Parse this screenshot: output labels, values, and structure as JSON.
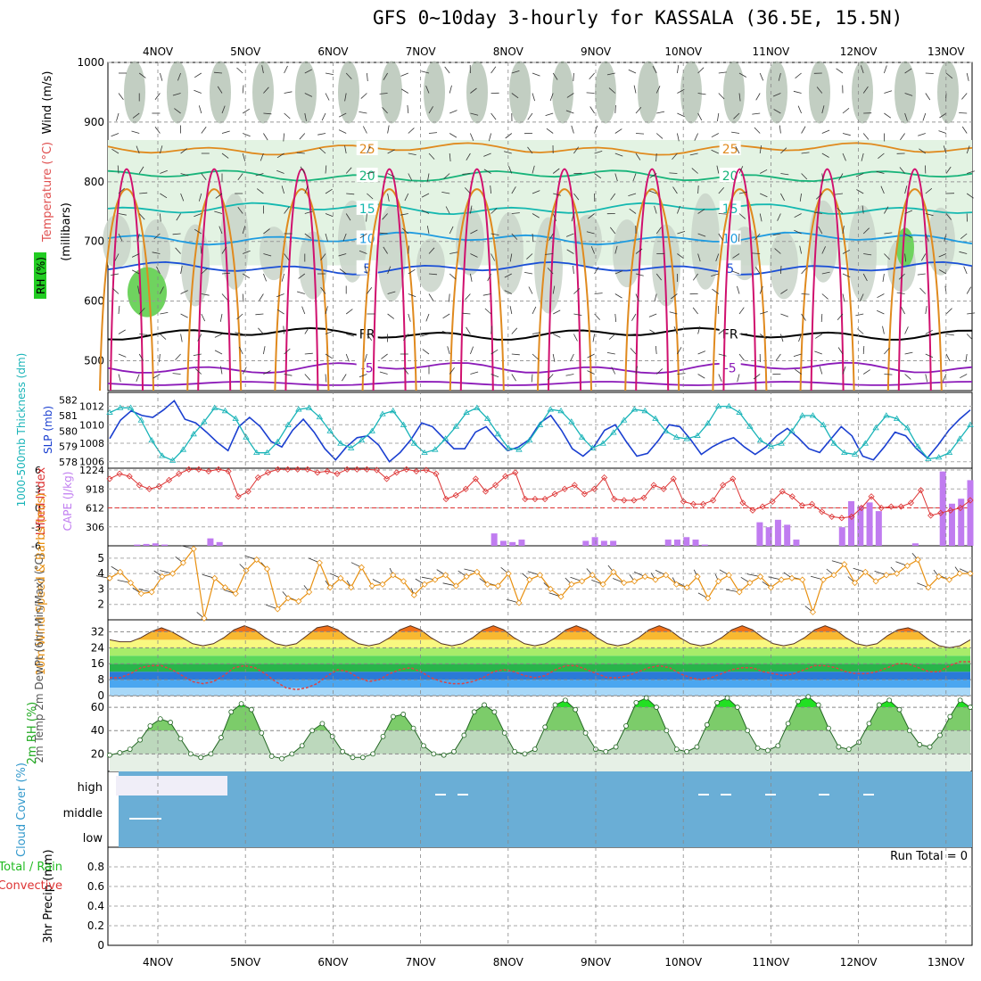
{
  "title": "GFS 0~10day 3-hourly for KASSALA (36.5E, 15.5N)",
  "days": [
    "4NOV",
    "5NOV",
    "6NOV",
    "7NOV",
    "8NOV",
    "9NOV",
    "10NOV",
    "11NOV",
    "12NOV",
    "13NOV"
  ],
  "colors": {
    "purple": "#8b1ab8",
    "black": "#000000",
    "blue5": "#1a4fd6",
    "blue10": "#1e9be0",
    "cyan15": "#14b8b0",
    "green20": "#18b47a",
    "orange25": "#e08a1e",
    "magenta": "#d0106e",
    "rh_light": "#e3f3e3",
    "rh_mid": "#c9d3c9",
    "rh_dark": "#8fa68f",
    "rh_green": "#6fd35f",
    "slp": "#1a3fd0",
    "thick": "#1ab4b8",
    "li": "#dd3333",
    "cape": "#c07cf0",
    "wind": "#e89010",
    "cloud": "#6aaed6",
    "rhfill": "#22dd22",
    "dew": "#dd4444"
  },
  "chart_data": [
    {
      "id": "upper-air",
      "type": "heatmap",
      "ylabel": "(millibars)",
      "title_parts": [
        "RH (%)",
        "Temperature (°C)",
        "Wind (m/s)"
      ],
      "y_ticks": [
        "500",
        "600",
        "700",
        "800",
        "900",
        "1000"
      ],
      "ylim": [
        450,
        1000
      ],
      "isotherms": [
        {
          "label": "-5",
          "level": 488
        },
        {
          "label": "FR",
          "level": 545
        },
        {
          "label": "5",
          "level": 655
        },
        {
          "label": "10",
          "level": 705
        },
        {
          "label": "15",
          "level": 755
        },
        {
          "label": "20",
          "level": 810
        },
        {
          "label": "25",
          "level": 855
        }
      ]
    },
    {
      "id": "slp-thickness",
      "type": "line",
      "ylabel_left": "1000-500mb Thickness (dm)",
      "ylabel_right": "SLP (mb)",
      "thickness_ticks": [
        "582",
        "581",
        "580",
        "579",
        "578"
      ],
      "slp_ticks": [
        "1012",
        "1010",
        "1008",
        "1006"
      ],
      "series": [
        {
          "name": "SLP",
          "values": [
            1008.5,
            1010.5,
            1011.5,
            1011,
            1010.8,
            1011.6,
            1012.6,
            1010.6,
            1010.2,
            1009.2,
            1008.1,
            1007.2,
            1009.8,
            1010.8,
            1009.8,
            1008.2,
            1007.6,
            1009.4,
            1010.6,
            1009.2,
            1007.4,
            1006.2,
            1007.6,
            1008.6,
            1008.8,
            1007.8,
            1006,
            1007,
            1008.4,
            1010.2,
            1009.8,
            1008.6,
            1007.4,
            1007.4,
            1009.2,
            1009.8,
            1008.4,
            1007.2,
            1007.6,
            1008.4,
            1010.2,
            1011,
            1009.4,
            1007.4,
            1006.6,
            1007.6,
            1009.4,
            1010,
            1008.2,
            1006.6,
            1006.9,
            1008.3,
            1010,
            1009.8,
            1008.4,
            1006.8,
            1007.6,
            1008.2,
            1008.6,
            1007.6,
            1006.8,
            1007.6,
            1008.8,
            1009.6,
            1008.6,
            1007.4,
            1007,
            1008.4,
            1009.8,
            1008.8,
            1006.6,
            1006.2,
            1007.6,
            1009.2,
            1008.8,
            1007.4,
            1006.4,
            1007.8,
            1009.4,
            1010.6,
            1011.6
          ]
        },
        {
          "name": "Thickness",
          "values": [
            581.2,
            581.5,
            581.5,
            580.7,
            579.4,
            578.4,
            578.1,
            578.8,
            579.8,
            580.6,
            581.5,
            581.3,
            580.8,
            579.6,
            578.6,
            578.6,
            579.3,
            580.4,
            581.4,
            581.5,
            580.9,
            580,
            579.2,
            578.9,
            579.4,
            580,
            581.1,
            581.3,
            580.4,
            579.2,
            578.6,
            578.8,
            579.5,
            580.3,
            581.2,
            581.5,
            580.8,
            579.8,
            578.9,
            578.8,
            579.4,
            580.4,
            581.4,
            581.3,
            580.6,
            579.6,
            578.9,
            579.2,
            579.9,
            580.7,
            581.4,
            581.3,
            580.8,
            580,
            579.6,
            579.5,
            579.7,
            580.5,
            581.6,
            581.6,
            581.2,
            580.3,
            579.4,
            579,
            579.2,
            580,
            581,
            581,
            580.4,
            579.2,
            578.6,
            578.5,
            579.2,
            580.2,
            581,
            580.8,
            580.2,
            579,
            578.2,
            578.3,
            578.6,
            579.5,
            580.4
          ]
        }
      ]
    },
    {
      "id": "lifted-cape",
      "type": "bar",
      "ylabel_left": "Lifted Index",
      "ylabel_right": "CAPE (J/kg)",
      "li_ticks": [
        "-6",
        "-3",
        "0",
        "3",
        "6"
      ],
      "cape_ticks": [
        "1224",
        "918",
        "612",
        "306"
      ],
      "series": [
        {
          "name": "Lifted Index",
          "values": [
            4.6,
            5.4,
            5,
            3.6,
            3,
            3.4,
            4.4,
            5.4,
            6.1,
            6.1,
            5.8,
            6.1,
            5.8,
            1.8,
            2.6,
            4.8,
            5.6,
            6.1,
            6.1,
            6.1,
            6.1,
            5.6,
            5.8,
            5.4,
            6.1,
            6.1,
            6.1,
            6,
            4.6,
            5.6,
            6.1,
            5.8,
            6,
            5.4,
            1.4,
            2,
            3,
            4.6,
            2.6,
            3.6,
            5,
            5.6,
            1.4,
            1.4,
            1.4,
            2.2,
            3,
            3.6,
            2.2,
            3,
            4.8,
            1.4,
            1.2,
            1.2,
            1.6,
            3.6,
            3,
            4.6,
            1,
            0.6,
            0.6,
            1.2,
            3.6,
            4.6,
            0.8,
            -0.4,
            0.2,
            1,
            2.6,
            1.8,
            0.4,
            0.6,
            -0.6,
            -1.4,
            -1.6,
            -1.4,
            0,
            1.8,
            0,
            0.2,
            0.2,
            0.8,
            2.8,
            -1.2,
            -0.8,
            -0.4,
            0,
            1.2
          ]
        },
        {
          "name": "CAPE",
          "values": [
            0,
            0,
            0,
            20,
            30,
            40,
            20,
            0,
            0,
            0,
            0,
            120,
            60,
            0,
            0,
            0,
            0,
            0,
            0,
            0,
            0,
            0,
            0,
            0,
            0,
            0,
            0,
            0,
            0,
            0,
            0,
            0,
            0,
            0,
            0,
            0,
            0,
            0,
            0,
            0,
            0,
            0,
            200,
            80,
            60,
            100,
            0,
            0,
            0,
            0,
            0,
            0,
            80,
            140,
            80,
            80,
            0,
            0,
            0,
            0,
            0,
            100,
            100,
            140,
            100,
            20,
            0,
            0,
            0,
            0,
            0,
            380,
            300,
            420,
            340,
            100,
            0,
            0,
            0,
            0,
            300,
            720,
            640,
            700,
            560,
            0,
            0,
            0,
            40,
            0,
            0,
            1200,
            680,
            760,
            1060
          ]
        }
      ]
    },
    {
      "id": "wind10m",
      "type": "line",
      "ylabel": "10m Wind Speed & Barbs (m/s)",
      "y_ticks": [
        "5",
        "4",
        "3",
        "2"
      ],
      "ylim": [
        1,
        5.8
      ],
      "series": [
        {
          "name": "Wind Speed",
          "values": [
            3.7,
            4.1,
            3.4,
            2.7,
            2.8,
            3.8,
            4,
            4.7,
            5.6,
            1.1,
            3.7,
            3.1,
            2.7,
            4.2,
            4.9,
            4.3,
            1.7,
            2.4,
            2.2,
            2.8,
            4.7,
            3.1,
            3.7,
            3.1,
            4.4,
            3.2,
            3.3,
            3.9,
            3.5,
            2.6,
            3.3,
            3.6,
            3.9,
            3.2,
            3.8,
            4.1,
            3.3,
            3.2,
            4,
            2.1,
            3.6,
            3.9,
            3,
            2.5,
            3.3,
            3.5,
            3.9,
            3.3,
            4.1,
            3.4,
            3.5,
            3.8,
            3.6,
            3.9,
            3.3,
            3.1,
            3.8,
            2.4,
            3.5,
            3.9,
            2.8,
            3.4,
            3.8,
            3.1,
            3.6,
            3.7,
            3.6,
            1.5,
            3.6,
            3.9,
            4.6,
            3.4,
            4.1,
            3.5,
            3.9,
            4,
            4.5,
            4.9,
            3.1,
            3.8,
            3.6,
            4,
            4
          ]
        }
      ]
    },
    {
      "id": "temp-dewpt",
      "type": "area",
      "ylabel": "2m Temp 2m DewPt (6hr Min/Max) (°C)",
      "y_ticks": [
        "32",
        "24",
        "16",
        "8",
        "0"
      ],
      "ylim": [
        0,
        38
      ],
      "series": [
        {
          "name": "2m Temp",
          "values": [
            28,
            27,
            27,
            29,
            32,
            34,
            32,
            29,
            26,
            25,
            26,
            29,
            33,
            35,
            33,
            29,
            26,
            25,
            26,
            30,
            34,
            35,
            33,
            29,
            26,
            25,
            26,
            29,
            33,
            35,
            33,
            29,
            26,
            25,
            26,
            29,
            33,
            35,
            33,
            29,
            26,
            25,
            26,
            29,
            33,
            35,
            33,
            29,
            26,
            25,
            26,
            29,
            33,
            35,
            33,
            29,
            26,
            25,
            26,
            29,
            33,
            35,
            33,
            29,
            26,
            25,
            26,
            29,
            33,
            35,
            33,
            29,
            26,
            25,
            26,
            30,
            33,
            34,
            32,
            28,
            25,
            24,
            25,
            28
          ]
        },
        {
          "name": "2m DewPt",
          "values": [
            9,
            9,
            11,
            14,
            15,
            15,
            13,
            10,
            7,
            6,
            7,
            10,
            14,
            15,
            14,
            11,
            7,
            4,
            3,
            4,
            6,
            10,
            13,
            12,
            9,
            7,
            8,
            11,
            13,
            14,
            12,
            9,
            7,
            6,
            6,
            7,
            9,
            12,
            13,
            12,
            10,
            9,
            10,
            13,
            15,
            15,
            13,
            11,
            9,
            9,
            10,
            12,
            14,
            15,
            14,
            11,
            9,
            8,
            9,
            11,
            13,
            14,
            14,
            12,
            11,
            10,
            11,
            13,
            15,
            15,
            14,
            12,
            11,
            11,
            12,
            14,
            16,
            16,
            14,
            12,
            12,
            15,
            17,
            17
          ]
        }
      ]
    },
    {
      "id": "rh2m",
      "type": "area",
      "ylabel": "2m RH (%)",
      "y_ticks": [
        "60",
        "40",
        "20"
      ],
      "ylim": [
        5,
        70
      ],
      "series": [
        {
          "name": "2m RH",
          "values": [
            19,
            21,
            24,
            32,
            44,
            50,
            47,
            33,
            20,
            17,
            20,
            34,
            56,
            63,
            58,
            38,
            18,
            16,
            20,
            27,
            40,
            46,
            35,
            22,
            17,
            17,
            20,
            35,
            52,
            54,
            42,
            27,
            20,
            19,
            22,
            36,
            56,
            62,
            56,
            38,
            22,
            20,
            24,
            43,
            62,
            66,
            58,
            38,
            24,
            22,
            26,
            44,
            64,
            68,
            60,
            40,
            24,
            22,
            26,
            45,
            64,
            68,
            60,
            40,
            25,
            23,
            27,
            46,
            65,
            69,
            62,
            42,
            26,
            24,
            30,
            46,
            62,
            66,
            58,
            40,
            28,
            26,
            36,
            52,
            66,
            60
          ]
        }
      ]
    },
    {
      "id": "cloud-cover",
      "type": "heatmap",
      "ylabel": "Cloud Cover (%)",
      "levels": [
        "high",
        "middle",
        "low"
      ]
    },
    {
      "id": "precip",
      "type": "bar",
      "ylabel": "3hr Precip (mm)",
      "ylabel_extra": [
        "Total / Rain",
        "Convective"
      ],
      "y_ticks": [
        "0.8",
        "0.6",
        "0.4",
        "0.2",
        "0"
      ],
      "ylim": [
        0,
        1
      ],
      "run_total": "Run Total = 0",
      "series": [
        {
          "name": "Precip",
          "values": []
        }
      ]
    }
  ]
}
